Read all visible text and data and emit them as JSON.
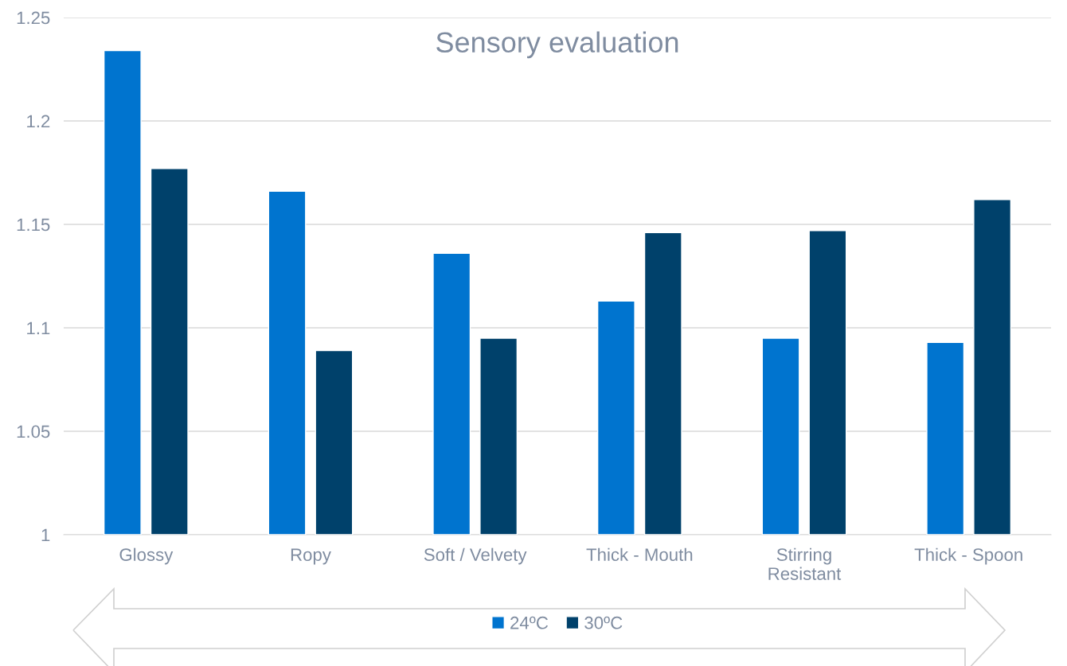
{
  "chart_data": {
    "type": "bar",
    "title": "Sensory evaluation",
    "categories": [
      "Glossy",
      "Ropy",
      "Soft / Velvety",
      "Thick - Mouth",
      "Stirring\nResistant",
      "Thick - Spoon"
    ],
    "series": [
      {
        "name": "24ºC",
        "color": "#0074cf",
        "values": [
          1.234,
          1.166,
          1.136,
          1.113,
          1.095,
          1.093
        ]
      },
      {
        "name": "30ºC",
        "color": "#00416b",
        "values": [
          1.177,
          1.089,
          1.095,
          1.146,
          1.147,
          1.162
        ]
      }
    ],
    "ylim": [
      1,
      1.25
    ],
    "yticks": [
      1,
      1.05,
      1.1,
      1.15,
      1.2,
      1.25
    ],
    "grid": "y",
    "legend": "bottom"
  }
}
